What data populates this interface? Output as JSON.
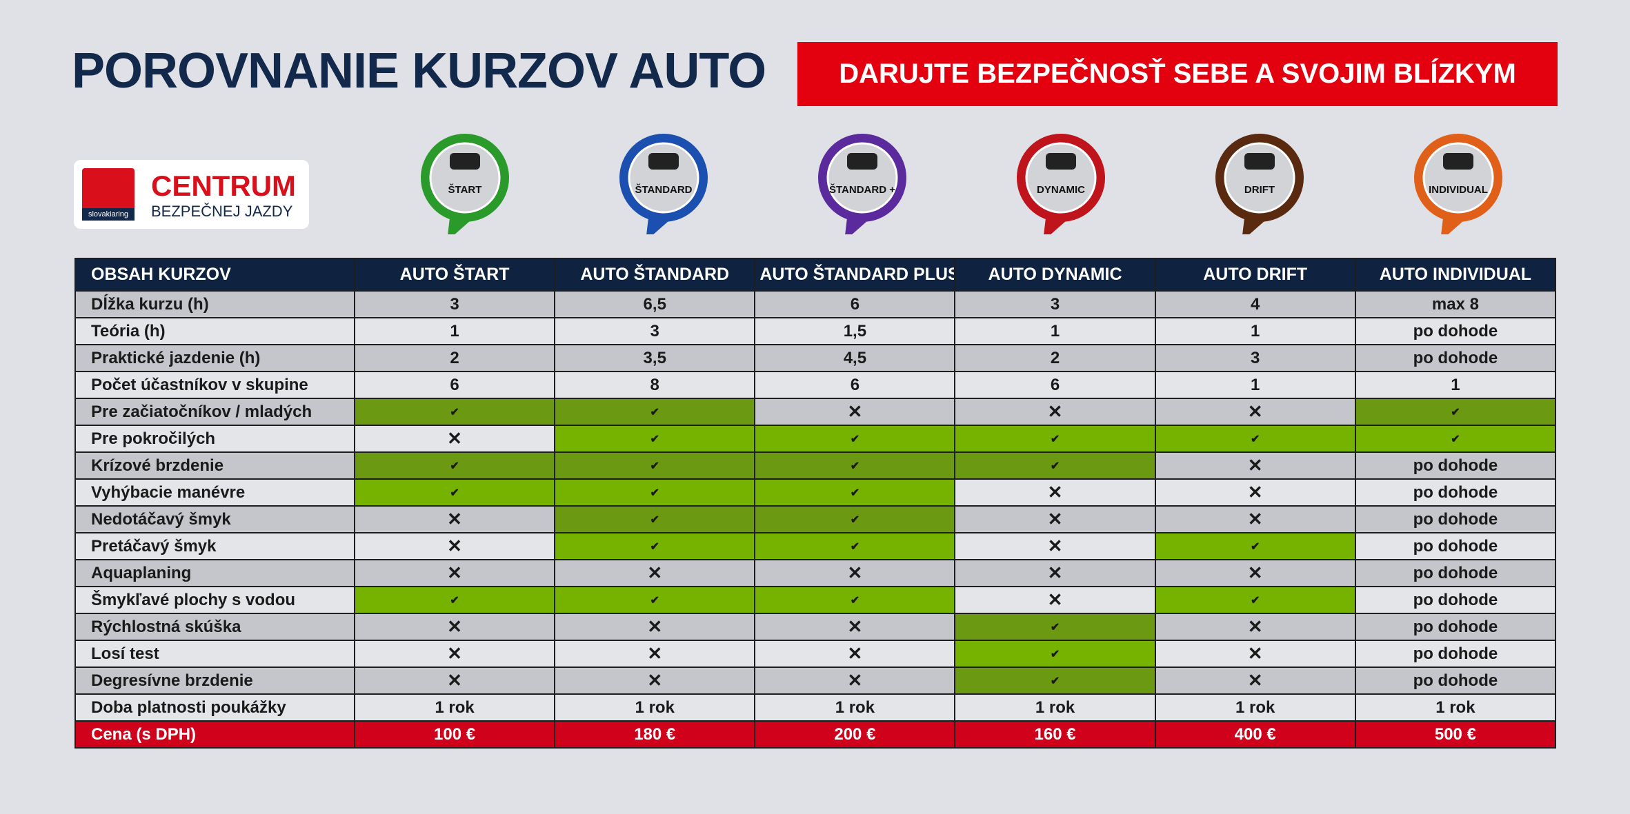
{
  "header": {
    "title": "POROVNANIE KURZOV AUTO",
    "banner": "DARUJTE BEZPEČNOSŤ SEBE A SVOJIM BLÍZKYM"
  },
  "logo": {
    "brand": "slovakiaring",
    "line1": "CENTRUM",
    "line2": "BEZPEČNEJ JAZDY"
  },
  "badges": [
    {
      "label": "ŠTART",
      "color": "#2a9a2a"
    },
    {
      "label": "ŠTANDARD",
      "color": "#1b4fb0"
    },
    {
      "label": "ŠTANDARD +",
      "color": "#5b2a9c"
    },
    {
      "label": "DYNAMIC",
      "color": "#c0141c"
    },
    {
      "label": "DRIFT",
      "color": "#5a2a10"
    },
    {
      "label": "INDIVIDUAL",
      "color": "#e0601a"
    }
  ],
  "table": {
    "header": [
      "OBSAH KURZOV",
      "AUTO ŠTART",
      "AUTO ŠTANDARD",
      "AUTO ŠTANDARD PLUS",
      "AUTO DYNAMIC",
      "AUTO DRIFT",
      "AUTO INDIVIDUAL"
    ],
    "rows": [
      [
        "Dĺžka kurzu (h)",
        "3",
        "6,5",
        "6",
        "3",
        "4",
        "max 8"
      ],
      [
        "Teória (h)",
        "1",
        "3",
        "1,5",
        "1",
        "1",
        "po dohode"
      ],
      [
        "Praktické jazdenie (h)",
        "2",
        "3,5",
        "4,5",
        "2",
        "3",
        "po dohode"
      ],
      [
        "Počet účastníkov v skupine",
        "6",
        "8",
        "6",
        "6",
        "1",
        "1"
      ],
      [
        "Pre začiatočníkov / mladých",
        "✔",
        "✔",
        "✕",
        "✕",
        "✕",
        "✔"
      ],
      [
        "Pre pokročilých",
        "✕",
        "✔",
        "✔",
        "✔",
        "✔",
        "✔"
      ],
      [
        "Krízové brzdenie",
        "✔",
        "✔",
        "✔",
        "✔",
        "✕",
        "po dohode"
      ],
      [
        "Vyhýbacie manévre",
        "✔",
        "✔",
        "✔",
        "✕",
        "✕",
        "po dohode"
      ],
      [
        "Nedotáčavý šmyk",
        "✕",
        "✔",
        "✔",
        "✕",
        "✕",
        "po dohode"
      ],
      [
        "Pretáčavý šmyk",
        "✕",
        "✔",
        "✔",
        "✕",
        "✔",
        "po dohode"
      ],
      [
        "Aquaplaning",
        "✕",
        "✕",
        "✕",
        "✕",
        "✕",
        "po dohode"
      ],
      [
        "Šmykľavé plochy s vodou",
        "✔",
        "✔",
        "✔",
        "✕",
        "✔",
        "po dohode"
      ],
      [
        "Rýchlostná skúška",
        "✕",
        "✕",
        "✕",
        "✔",
        "✕",
        "po dohode"
      ],
      [
        "Losí test",
        "✕",
        "✕",
        "✕",
        "✔",
        "✕",
        "po dohode"
      ],
      [
        "Degresívne brzdenie",
        "✕",
        "✕",
        "✕",
        "✔",
        "✕",
        "po dohode"
      ],
      [
        "Doba platnosti poukážky",
        "1 rok",
        "1 rok",
        "1 rok",
        "1 rok",
        "1 rok",
        "1 rok"
      ],
      [
        "Cena (s DPH)",
        "100 €",
        "180 €",
        "200 €",
        "160 €",
        "400 €",
        "500 €"
      ]
    ]
  }
}
